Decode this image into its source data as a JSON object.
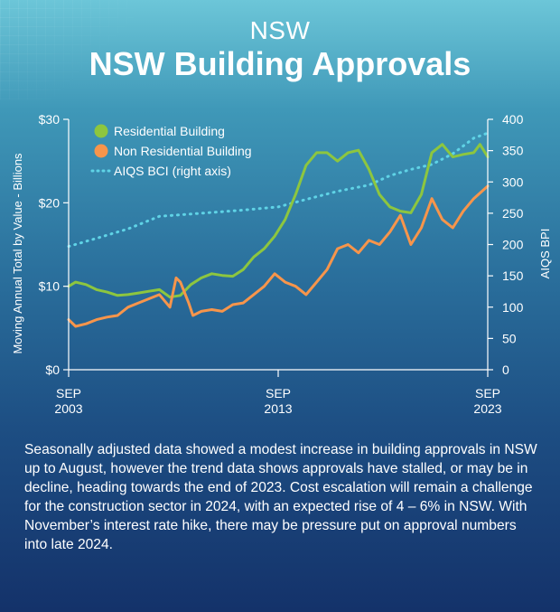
{
  "header": {
    "kicker": "NSW",
    "title": "NSW Building Approvals"
  },
  "caption": "Seasonally adjusted data showed a modest increase in building approvals in NSW up to August, however the trend data shows approvals have stalled, or may be in decline, heading towards the end of 2023. Cost escalation will remain a challenge for the construction sector in 2024, with an expected rise of 4 – 6% in NSW. With November’s interest rate hike, there may be pressure put on approval numbers into late 2024.",
  "colors": {
    "residential": "#8dc63f",
    "non_residential": "#f7954b",
    "bci": "#5fd3e6",
    "axis": "#ffffff"
  },
  "chart_data": {
    "type": "line",
    "ylabel": "Moving Annual Total by Value - Billions",
    "y2label": "AIQS BPI",
    "ylim": [
      0,
      30
    ],
    "y2lim": [
      0,
      400
    ],
    "xlim": [
      2003.67,
      2023.67
    ],
    "yticks": [
      "$0",
      "$10",
      "$20",
      "$30"
    ],
    "y2ticks": [
      "0",
      "50",
      "100",
      "150",
      "200",
      "250",
      "300",
      "350",
      "400"
    ],
    "xticks": [
      {
        "month": "SEP",
        "year": "2003"
      },
      {
        "month": "SEP",
        "year": "2013"
      },
      {
        "month": "SEP",
        "year": "2023"
      }
    ],
    "legend_position": "top-left",
    "series": [
      {
        "name": "Residential Building",
        "axis": "left",
        "x": [
          2003.67,
          2004.0,
          2004.5,
          2005.0,
          2005.5,
          2006.0,
          2006.5,
          2007.0,
          2007.5,
          2008.0,
          2008.5,
          2009.0,
          2009.5,
          2010.0,
          2010.5,
          2011.0,
          2011.5,
          2012.0,
          2012.5,
          2013.0,
          2013.5,
          2014.0,
          2014.5,
          2015.0,
          2015.5,
          2016.0,
          2016.5,
          2017.0,
          2017.5,
          2018.0,
          2018.5,
          2019.0,
          2019.5,
          2020.0,
          2020.5,
          2021.0,
          2021.5,
          2022.0,
          2022.5,
          2023.0,
          2023.3,
          2023.67
        ],
        "values": [
          10.0,
          10.5,
          10.2,
          9.6,
          9.3,
          8.9,
          9.0,
          9.2,
          9.4,
          9.6,
          8.7,
          8.9,
          10.2,
          11.0,
          11.5,
          11.3,
          11.2,
          12.0,
          13.5,
          14.5,
          16.0,
          18.0,
          21.0,
          24.5,
          26.0,
          26.0,
          25.0,
          26.0,
          26.3,
          24.0,
          21.0,
          19.5,
          19.0,
          18.8,
          21.0,
          26.0,
          27.0,
          25.5,
          25.8,
          26.0,
          27.0,
          25.5
        ]
      },
      {
        "name": "Non Residential Building",
        "axis": "left",
        "x": [
          2003.67,
          2004.0,
          2004.5,
          2005.0,
          2005.5,
          2006.0,
          2006.5,
          2007.0,
          2007.5,
          2008.0,
          2008.5,
          2008.8,
          2009.0,
          2009.4,
          2009.6,
          2010.0,
          2010.5,
          2011.0,
          2011.5,
          2012.0,
          2012.5,
          2013.0,
          2013.5,
          2014.0,
          2014.5,
          2015.0,
          2015.5,
          2016.0,
          2016.5,
          2017.0,
          2017.5,
          2018.0,
          2018.5,
          2019.0,
          2019.5,
          2020.0,
          2020.5,
          2021.0,
          2021.5,
          2022.0,
          2022.5,
          2023.0,
          2023.67
        ],
        "values": [
          6.0,
          5.2,
          5.5,
          6.0,
          6.3,
          6.5,
          7.5,
          8.0,
          8.5,
          9.0,
          7.5,
          11.0,
          10.5,
          8.0,
          6.5,
          7.0,
          7.2,
          7.0,
          7.8,
          8.0,
          9.0,
          10.0,
          11.5,
          10.5,
          10.0,
          9.0,
          10.5,
          12.0,
          14.5,
          15.0,
          14.0,
          15.5,
          15.0,
          16.5,
          18.5,
          15.0,
          17.0,
          20.5,
          18.0,
          17.0,
          19.0,
          20.5,
          22.0
        ]
      },
      {
        "name": "AIQS BCI (right axis)",
        "axis": "right",
        "x": [
          2003.67,
          2005.0,
          2006.5,
          2008.0,
          2010.0,
          2012.0,
          2013.67,
          2015.0,
          2016.5,
          2018.0,
          2019.0,
          2020.0,
          2021.0,
          2022.0,
          2023.0,
          2023.67
        ],
        "values": [
          197,
          210,
          225,
          245,
          250,
          255,
          260,
          272,
          285,
          295,
          310,
          320,
          328,
          345,
          370,
          378
        ]
      }
    ]
  }
}
